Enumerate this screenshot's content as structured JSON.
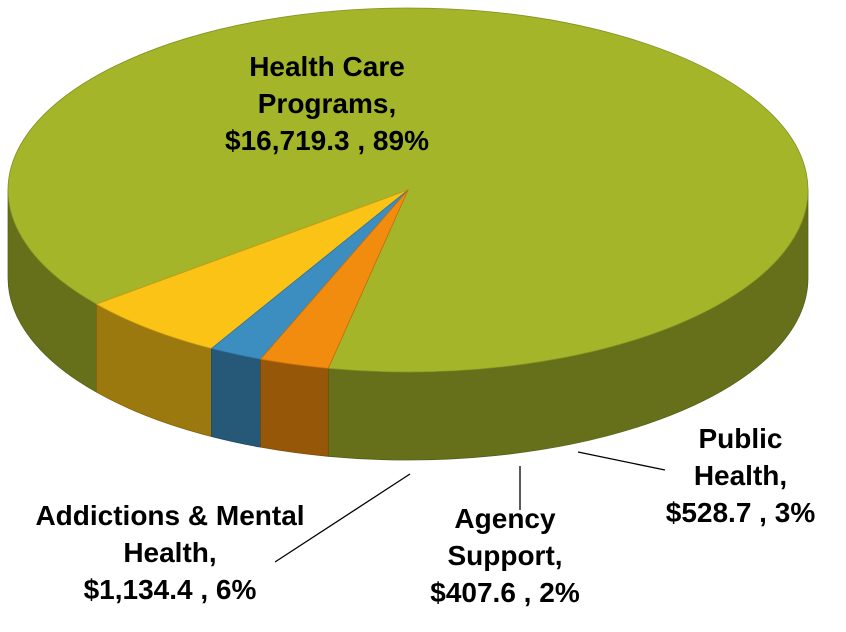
{
  "chart_data": {
    "type": "pie3d",
    "categories": [
      "Health Care Programs,",
      "Addictions & Mental Health,",
      "Agency Support,",
      "Public Health,"
    ],
    "values": [
      16719.3,
      1134.4,
      407.6,
      528.7
    ],
    "value_labels": [
      "$16,719.3 , 89%",
      "$1,134.4 , 6%",
      "$407.6 , 2%",
      "$528.7 , 3%"
    ],
    "colors": [
      "#a4b52a",
      "#fbc316",
      "#3d8ec0",
      "#f28c0f"
    ]
  }
}
